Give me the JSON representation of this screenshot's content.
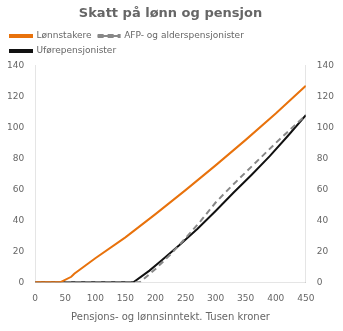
{
  "chart_data": {
    "type": "line",
    "title": "Skatt på lønn og pensjon",
    "xlabel": "Pensjons- og lønnsinntekt. Tusen kroner",
    "xlim": [
      0,
      450
    ],
    "xticks": [
      0,
      50,
      100,
      150,
      200,
      250,
      300,
      350,
      400,
      450
    ],
    "ylim": [
      0,
      140
    ],
    "yticks": [
      0,
      20,
      40,
      60,
      80,
      100,
      120,
      140
    ],
    "y2lim": [
      0,
      140
    ],
    "y2ticks": [
      0,
      20,
      40,
      60,
      80,
      100,
      120,
      140
    ],
    "grid": false,
    "legend": "upper left",
    "series": [
      {
        "name": "Lønnstakere",
        "color": "#e8720c",
        "line_style": "solid",
        "x": [
          0,
          42,
          43,
          60,
          65,
          100,
          150,
          200,
          250,
          300,
          350,
          400,
          450
        ],
        "values": [
          0,
          0,
          0.2,
          3.5,
          5.5,
          15.5,
          29.0,
          44.0,
          59.5,
          75.5,
          92.0,
          109.0,
          127.0
        ]
      },
      {
        "name": "AFP- og alderspensjonister",
        "color": "#888888",
        "line_style": "dashed",
        "x": [
          0,
          174,
          175,
          200,
          225,
          250,
          275,
          300,
          325,
          350,
          375,
          400,
          425,
          450
        ],
        "values": [
          0,
          0,
          0.2,
          8.5,
          18.0,
          28.5,
          39.5,
          51.5,
          61.5,
          71.0,
          80.5,
          90.0,
          99.0,
          108.0
        ]
      },
      {
        "name": "Uførepensjonister",
        "color": "#111111",
        "line_style": "solid",
        "x": [
          0,
          163,
          164,
          190,
          210,
          240,
          270,
          300,
          330,
          360,
          390,
          420,
          450
        ],
        "values": [
          0,
          0,
          0.2,
          7.5,
          14.0,
          24.0,
          34.5,
          46.0,
          58.0,
          69.5,
          81.5,
          94.5,
          108.0
        ]
      }
    ]
  }
}
